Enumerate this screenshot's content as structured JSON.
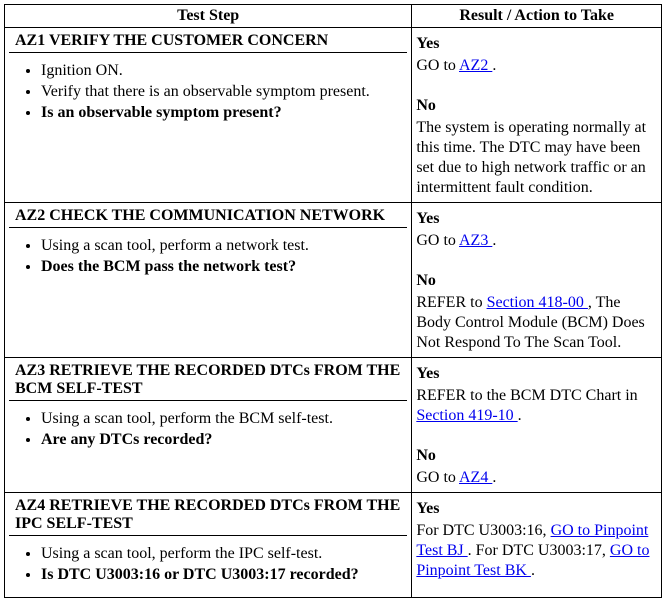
{
  "headers": {
    "left": "Test Step",
    "right": "Result / Action to Take"
  },
  "rows": [
    {
      "title": "AZ1 VERIFY THE CUSTOMER CONCERN",
      "steps": [
        {
          "text": "Ignition ON.",
          "bold": false
        },
        {
          "text": "Verify that there is an observable symptom present.",
          "bold": false
        },
        {
          "text": "Is an observable symptom present?",
          "bold": true
        }
      ],
      "result": {
        "yes_label": "Yes",
        "yes_parts": [
          {
            "text": "GO to ",
            "link": false
          },
          {
            "text": "AZ2 ",
            "link": true
          },
          {
            "text": ".",
            "link": false
          }
        ],
        "no_label": "No",
        "no_parts": [
          {
            "text": "The system is operating normally at this time. The DTC may have been set due to high network traffic or an intermittent fault condition.",
            "link": false
          }
        ]
      }
    },
    {
      "title": "AZ2 CHECK THE COMMUNICATION NETWORK",
      "steps": [
        {
          "text": "Using a scan tool, perform a network test.",
          "bold": false
        },
        {
          "text": "Does the BCM pass the network test?",
          "bold": true
        }
      ],
      "result": {
        "yes_label": "Yes",
        "yes_parts": [
          {
            "text": "GO to ",
            "link": false
          },
          {
            "text": "AZ3 ",
            "link": true
          },
          {
            "text": ".",
            "link": false
          }
        ],
        "no_label": "No",
        "no_parts": [
          {
            "text": "REFER to ",
            "link": false
          },
          {
            "text": "Section 418-00 ",
            "link": true
          },
          {
            "text": ", The Body Control Module (BCM) Does Not Respond To The Scan Tool.",
            "link": false
          }
        ]
      }
    },
    {
      "title": " AZ3 RETRIEVE THE RECORDED DTCs FROM THE BCM SELF-TEST",
      "steps": [
        {
          "text": "Using a scan tool, perform the BCM self-test.",
          "bold": false
        },
        {
          "text": "Are any DTCs recorded?",
          "bold": true
        }
      ],
      "result": {
        "yes_label": "Yes",
        "yes_parts": [
          {
            "text": "REFER to the BCM DTC Chart in ",
            "link": false
          },
          {
            "text": "Section 419-10 ",
            "link": true
          },
          {
            "text": ".",
            "link": false
          }
        ],
        "no_label": "No",
        "no_parts": [
          {
            "text": "GO to ",
            "link": false
          },
          {
            "text": "AZ4 ",
            "link": true
          },
          {
            "text": ".",
            "link": false
          }
        ]
      }
    },
    {
      "title": " AZ4 RETRIEVE THE RECORDED DTCs FROM THE IPC SELF-TEST",
      "steps": [
        {
          "text": "Using a scan tool, perform the IPC self-test.",
          "bold": false
        },
        {
          "text": "Is DTC U3003:16 or DTC U3003:17 recorded?",
          "bold": true
        }
      ],
      "result": {
        "yes_label": "Yes",
        "yes_parts": [
          {
            "text": "For DTC U3003:16, ",
            "link": false
          },
          {
            "text": "GO to Pinpoint Test BJ ",
            "link": true
          },
          {
            "text": ". For DTC U3003:17, ",
            "link": false
          },
          {
            "text": "GO to Pinpoint Test BK ",
            "link": true
          },
          {
            "text": ".",
            "link": false
          }
        ],
        "no_label": null,
        "no_parts": []
      }
    }
  ]
}
